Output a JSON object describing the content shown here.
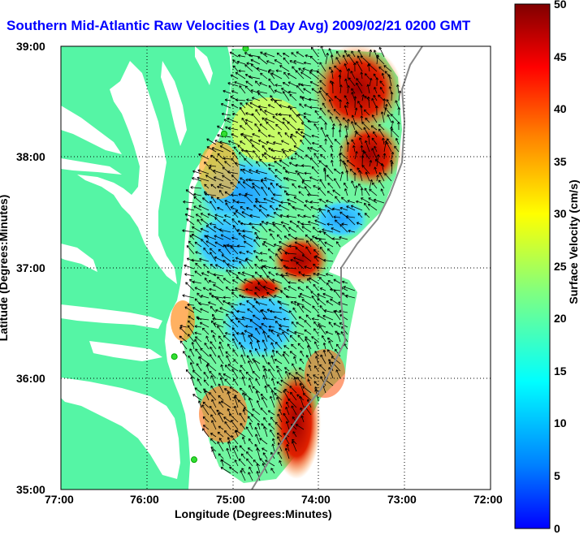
{
  "title": "Southern Mid-Atlantic Raw Velocities (1 Day Avg) 2009/02/21 0200 GMT",
  "axes": {
    "xlabel": "Longitude (Degrees:Minutes)",
    "ylabel": "Latitude (Degrees:Minutes)",
    "x_ticks": [
      "77:00",
      "76:00",
      "75:00",
      "74:00",
      "73:00",
      "72:00"
    ],
    "y_ticks": [
      "39:00",
      "38:00",
      "37:00",
      "36:00",
      "35:00"
    ],
    "xlim": [
      -77,
      -72
    ],
    "ylim": [
      35,
      39
    ]
  },
  "colorbar": {
    "label": "Surface Velocity (cm/s)",
    "ticks": [
      "50",
      "45",
      "40",
      "35",
      "30",
      "25",
      "20",
      "15",
      "10",
      "5",
      "0"
    ],
    "range": [
      0,
      50
    ]
  },
  "colors": {
    "land": "#55f5a5",
    "water": "#ffffff",
    "title": "#0000ff",
    "station": "#33dd33"
  },
  "stations": [
    {
      "lon": -74.85,
      "lat": 38.98
    },
    {
      "lon": -75.1,
      "lat": 38.21
    },
    {
      "lon": -75.68,
      "lat": 36.2
    },
    {
      "lon": -75.45,
      "lat": 35.27
    }
  ]
}
